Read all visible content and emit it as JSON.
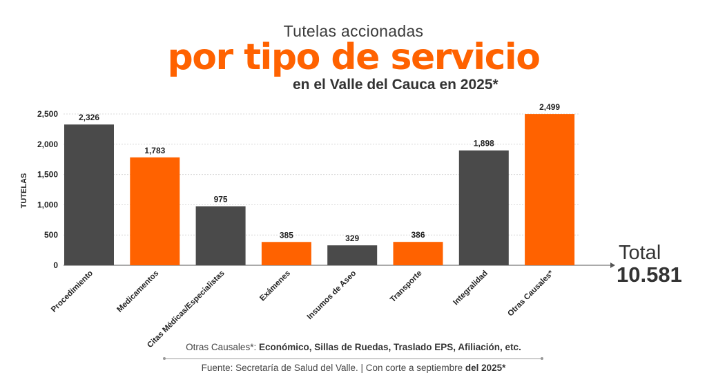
{
  "header": {
    "line1": "Tutelas accionadas",
    "line2": "por tipo de servicio",
    "line3": "en el Valle del Cauca en 2025*"
  },
  "chart_data": {
    "type": "bar",
    "categories": [
      "Procedimiento",
      "Medicamentos",
      "Citas Médicas/Especialistas",
      "Exámenes",
      "Insumos de Aseo",
      "Transporte",
      "Integralidad",
      "Otras Causales*"
    ],
    "values": [
      2326,
      1783,
      975,
      385,
      329,
      386,
      1898,
      2499
    ],
    "value_labels": [
      "2,326",
      "1,783",
      "975",
      "385",
      "329",
      "386",
      "1,898",
      "2,499"
    ],
    "ylabel": "TUTELAS",
    "ylim": [
      0,
      2500
    ],
    "yticks": [
      0,
      500,
      1000,
      1500,
      2000,
      2500
    ],
    "ytick_labels": [
      "0",
      "500",
      "1,000",
      "1,500",
      "2,000",
      "2,500"
    ],
    "grid": true,
    "bar_colors": [
      "#4a4a4a",
      "#ff6200",
      "#4a4a4a",
      "#ff6200",
      "#4a4a4a",
      "#ff6200",
      "#4a4a4a",
      "#ff6200"
    ]
  },
  "total": {
    "label": "Total",
    "value": "10.581"
  },
  "footnote": {
    "prefix": "Otras Causales*: ",
    "detail": "Económico, Sillas de Ruedas, Traslado EPS, Afiliación, etc."
  },
  "source": {
    "prefix": "Fuente: Secretaría de Salud del Valle.  |  Con corte a septiembre ",
    "bold": "del 2025*"
  }
}
